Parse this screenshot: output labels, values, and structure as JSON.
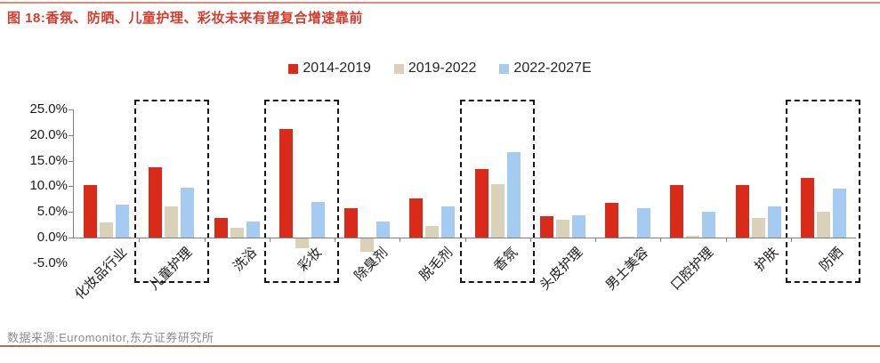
{
  "figure": {
    "title": "图 18:香氛、防晒、儿童护理、彩妆未来有望复合增速靠前",
    "source": "数据来源:Euromonitor,东方证券研究所"
  },
  "colors": {
    "title_red": "#d43b2c",
    "top_rule": "#dd8b7c",
    "bottom_rule": "#9a7663",
    "axis_gray": "#7f7f7f",
    "series_red": "#d92a1a",
    "series_beige": "#d9d2b8",
    "series_blue": "#a6cbf0",
    "highlight_box": "#141414"
  },
  "chart_data": {
    "type": "bar",
    "title": "图 18:香氛、防晒、儿童护理、彩妆未来有望复合增速靠前",
    "xlabel": "",
    "ylabel": "",
    "ylim": [
      -5,
      25
    ],
    "grid": false,
    "legend_position": "top-center",
    "y_ticks": [
      "25.0%",
      "20.0%",
      "15.0%",
      "10.0%",
      "5.0%",
      "0.0%",
      "-5.0%"
    ],
    "y_tick_values": [
      25,
      20,
      15,
      10,
      5,
      0,
      -5
    ],
    "categories": [
      "化妆品行业",
      "儿童护理",
      "洗浴",
      "彩妆",
      "除臭剂",
      "脱毛剂",
      "香氛",
      "头皮护理",
      "男士美容",
      "口腔护理",
      "护肤",
      "防晒"
    ],
    "series": [
      {
        "name": "2014-2019",
        "color": "#d92a1a",
        "values": [
          10.2,
          13.7,
          3.8,
          21.2,
          5.8,
          7.7,
          13.3,
          4.2,
          6.7,
          10.2,
          10.2,
          11.7
        ]
      },
      {
        "name": "2019-2022",
        "color": "#d9d2b8",
        "values": [
          3.0,
          6.0,
          1.9,
          -1.9,
          -2.6,
          2.2,
          10.4,
          3.4,
          0.2,
          0.3,
          3.9,
          5.1
        ]
      },
      {
        "name": "2022-2027E",
        "color": "#a6cbf0",
        "values": [
          6.4,
          9.7,
          3.1,
          7.0,
          3.1,
          6.1,
          16.7,
          4.4,
          5.7,
          5.0,
          6.1,
          9.5
        ]
      }
    ],
    "highlighted_categories": [
      "儿童护理",
      "彩妆",
      "香氛",
      "防晒"
    ]
  }
}
